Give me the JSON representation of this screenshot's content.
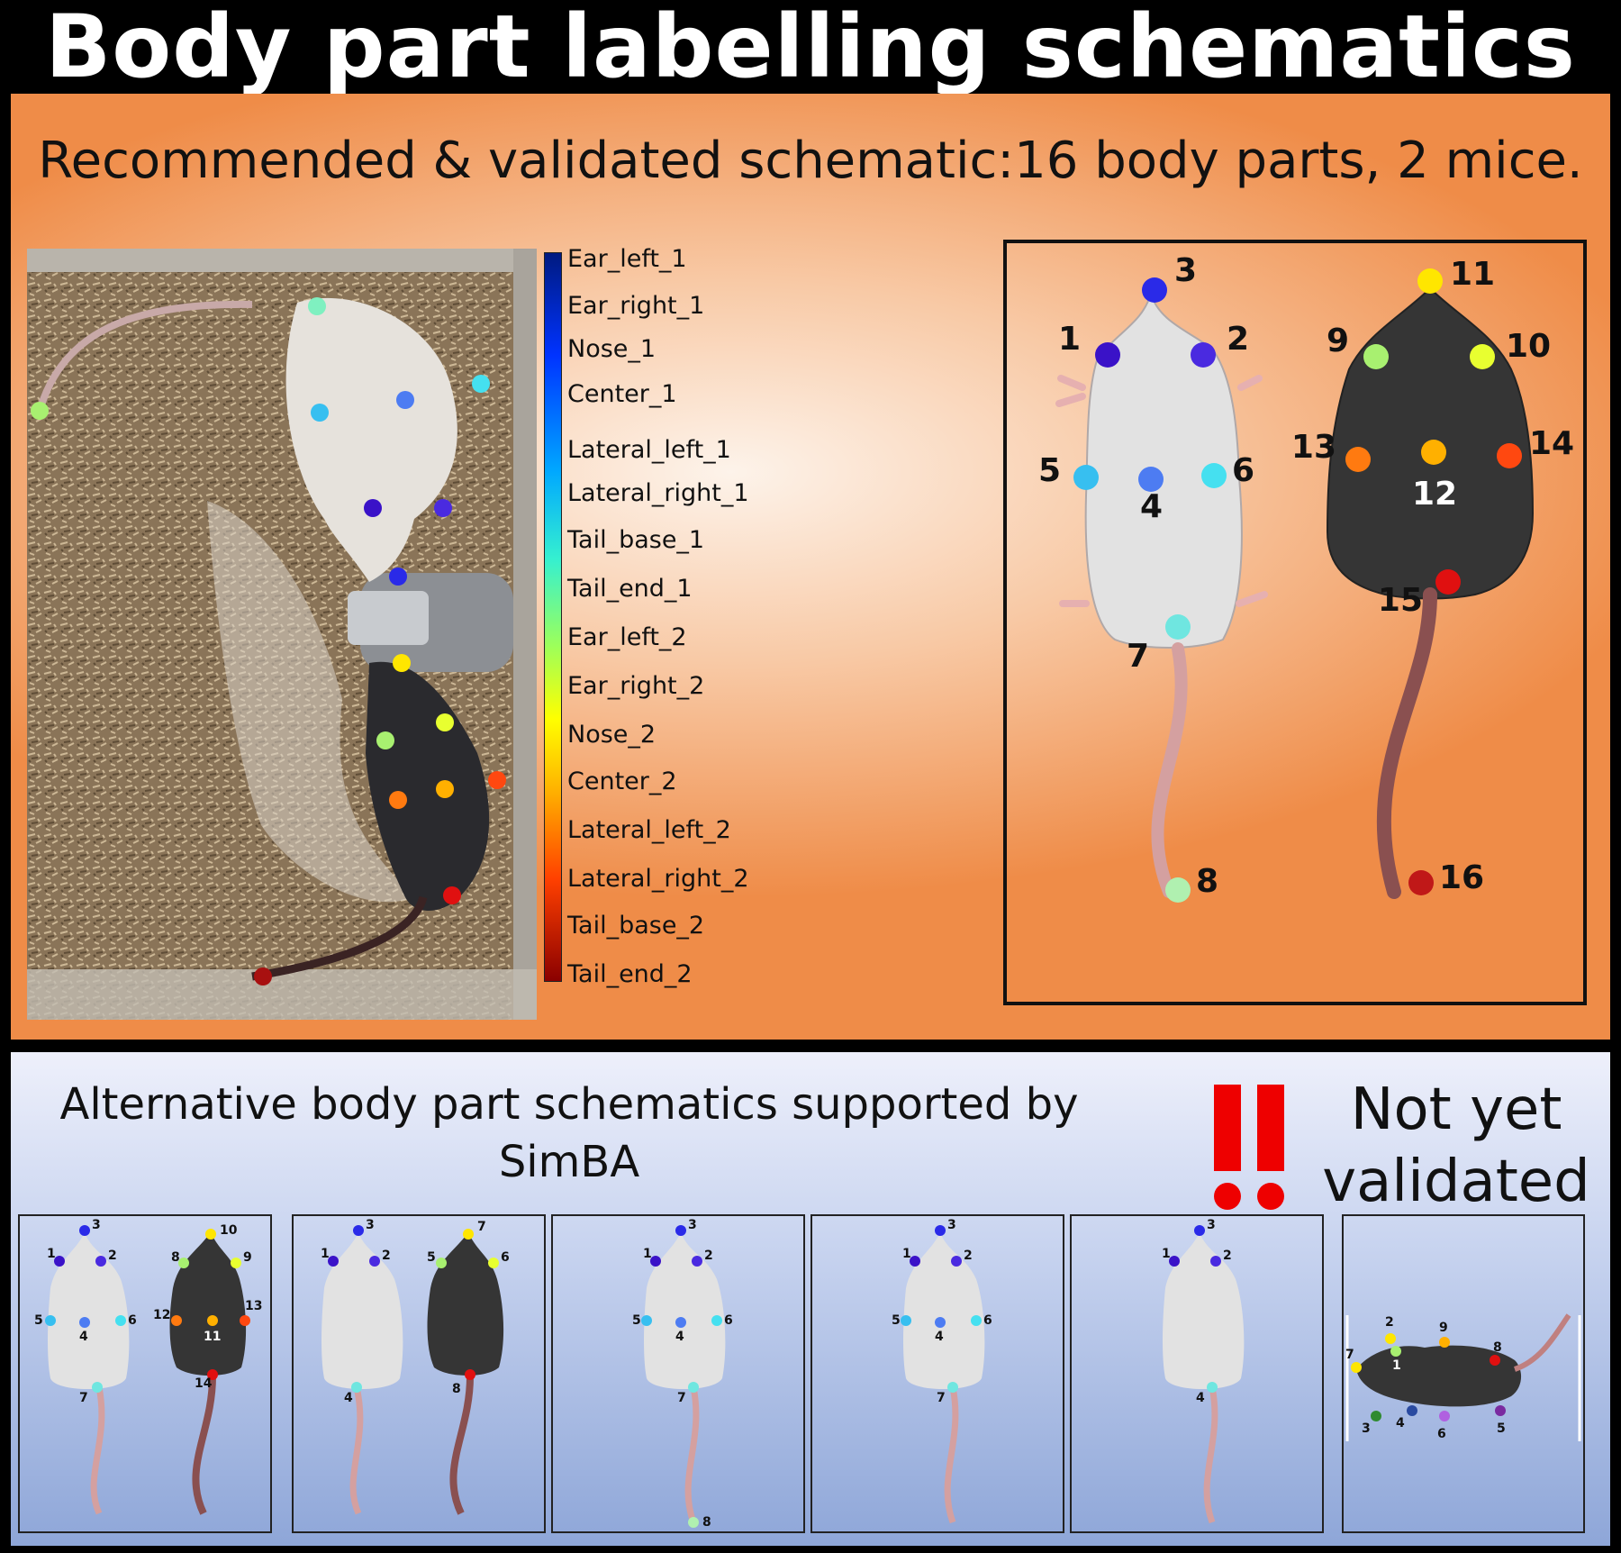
{
  "title": "Body part labelling schematics",
  "recommended": {
    "heading": "Recommended & validated schematic:16 body parts, 2 mice.",
    "legend": [
      "Ear_left_1",
      "Ear_right_1",
      "Nose_1",
      "Center_1",
      "Lateral_left_1",
      "Lateral_right_1",
      "Tail_base_1",
      "Tail_end_1",
      "Ear_left_2",
      "Ear_right_2",
      "Nose_2",
      "Center_2",
      "Lateral_left_2",
      "Lateral_right_2",
      "Tail_base_2",
      "Tail_end_2"
    ],
    "legend_colors": [
      "#3a12c8",
      "#4a2ae0",
      "#2a2ae8",
      "#4d7cf2",
      "#37bff0",
      "#45e0f0",
      "#6fe6e0",
      "#7ff0c0",
      "#a8f070",
      "#e8ff30",
      "#ffe600",
      "#ffb000",
      "#ff7a10",
      "#ff4810",
      "#e01010",
      "#a81010"
    ],
    "mouse1_labels": [
      "1",
      "2",
      "3",
      "4",
      "5",
      "6",
      "7",
      "8"
    ],
    "mouse2_labels": [
      "9",
      "10",
      "11",
      "12",
      "13",
      "14",
      "15",
      "16"
    ]
  },
  "alternatives": {
    "heading_line1": "Alternative body part schematics supported by",
    "heading_line2": "SimBA",
    "warning_line1": "Not yet",
    "warning_line2": "validated",
    "warning_icon": "double-exclamation-icon",
    "warning_color": "#ee0000",
    "schematics": [
      {
        "name": "two-mice-14",
        "white": [
          "1",
          "2",
          "3",
          "4",
          "5",
          "6",
          "7"
        ],
        "black": [
          "8",
          "9",
          "10",
          "11",
          "12",
          "13",
          "14"
        ]
      },
      {
        "name": "two-mice-8",
        "white": [
          "1",
          "2",
          "3",
          "4"
        ],
        "black": [
          "5",
          "6",
          "7",
          "8"
        ]
      },
      {
        "name": "one-mouse-8",
        "white": [
          "1",
          "2",
          "3",
          "4",
          "5",
          "6",
          "7",
          "8"
        ]
      },
      {
        "name": "one-mouse-7",
        "white": [
          "1",
          "2",
          "3",
          "4",
          "5",
          "6",
          "7"
        ]
      },
      {
        "name": "one-mouse-4",
        "white": [
          "1",
          "2",
          "3",
          "4"
        ]
      },
      {
        "name": "side-view-9",
        "side": [
          "1",
          "2",
          "3",
          "4",
          "5",
          "6",
          "7",
          "8",
          "9"
        ]
      }
    ]
  }
}
